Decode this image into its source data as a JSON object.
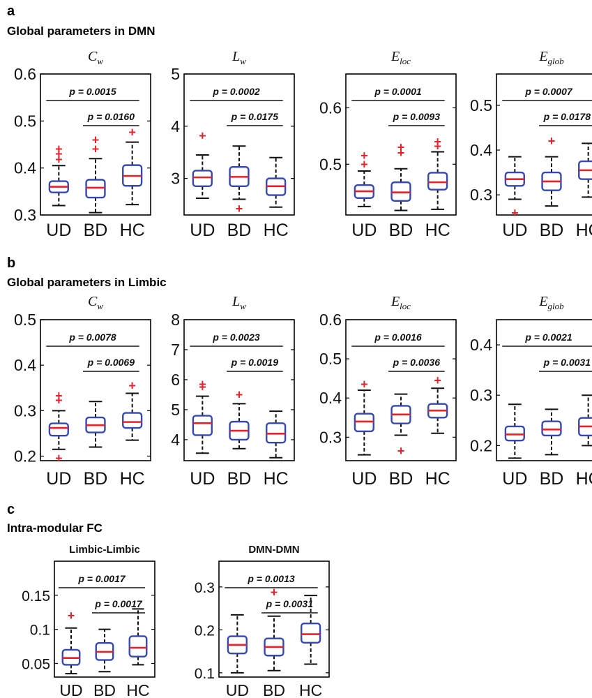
{
  "panels": [
    {
      "letter": "a",
      "title": "Global parameters in DMN"
    },
    {
      "letter": "b",
      "title": "Global parameters in Limbic"
    },
    {
      "letter": "c",
      "title": "Intra-modular FC"
    }
  ],
  "colors": {
    "box": "#3548b0",
    "median": "#e8202a",
    "outlier": "#e8202a",
    "whisker": "#111111"
  },
  "chart_data": [
    {
      "type": "box",
      "panel": "a",
      "title": "Cw",
      "title_main": "C",
      "title_sub": "w",
      "categories": [
        "UD",
        "BD",
        "HC"
      ],
      "ylim": [
        0.3,
        0.6
      ],
      "yticks": [
        "0.3",
        "0.4",
        "0.5",
        "0.6"
      ],
      "boxes": [
        {
          "low": 0.32,
          "q1": 0.348,
          "median": 0.36,
          "q3": 0.372,
          "high": 0.405,
          "outliers": [
            0.418,
            0.43,
            0.44
          ]
        },
        {
          "low": 0.305,
          "q1": 0.337,
          "median": 0.358,
          "q3": 0.375,
          "high": 0.42,
          "outliers": [
            0.44,
            0.46
          ]
        },
        {
          "low": 0.322,
          "q1": 0.362,
          "median": 0.383,
          "q3": 0.406,
          "high": 0.455,
          "outliers": [
            0.476
          ]
        }
      ],
      "pvalues": [
        {
          "text": "p = 0.0015",
          "from": 0,
          "to": 2
        },
        {
          "text": "p = 0.0160",
          "from": 1,
          "to": 2
        }
      ]
    },
    {
      "type": "box",
      "panel": "a",
      "title": "Lw",
      "title_main": "L",
      "title_sub": "w",
      "categories": [
        "UD",
        "BD",
        "HC"
      ],
      "ylim": [
        2.3,
        5.0
      ],
      "yticks": [
        "3",
        "4",
        "5"
      ],
      "boxes": [
        {
          "low": 2.62,
          "q1": 2.85,
          "median": 3.02,
          "q3": 3.15,
          "high": 3.45,
          "outliers": [
            3.82
          ]
        },
        {
          "low": 2.6,
          "q1": 2.85,
          "median": 3.03,
          "q3": 3.22,
          "high": 3.62,
          "outliers": [
            2.42
          ]
        },
        {
          "low": 2.45,
          "q1": 2.68,
          "median": 2.85,
          "q3": 3.0,
          "high": 3.4,
          "outliers": []
        }
      ],
      "pvalues": [
        {
          "text": "p = 0.0002",
          "from": 0,
          "to": 2
        },
        {
          "text": "p = 0.0175",
          "from": 1,
          "to": 2
        }
      ]
    },
    {
      "type": "box",
      "panel": "a",
      "title": "Eloc",
      "title_main": "E",
      "title_sub": "loc",
      "categories": [
        "UD",
        "BD",
        "HC"
      ],
      "ylim": [
        0.41,
        0.66
      ],
      "yticks": [
        "0.5",
        "0.6"
      ],
      "boxes": [
        {
          "low": 0.425,
          "q1": 0.44,
          "median": 0.452,
          "q3": 0.463,
          "high": 0.488,
          "outliers": [
            0.5,
            0.515
          ]
        },
        {
          "low": 0.418,
          "q1": 0.435,
          "median": 0.45,
          "q3": 0.468,
          "high": 0.492,
          "outliers": [
            0.52,
            0.53
          ]
        },
        {
          "low": 0.42,
          "q1": 0.455,
          "median": 0.468,
          "q3": 0.485,
          "high": 0.522,
          "outliers": [
            0.532,
            0.54
          ]
        }
      ],
      "pvalues": [
        {
          "text": "p = 0.0001",
          "from": 0,
          "to": 2
        },
        {
          "text": "p = 0.0093",
          "from": 1,
          "to": 2
        }
      ]
    },
    {
      "type": "box",
      "panel": "a",
      "title": "Eglob",
      "title_main": "E",
      "title_sub": "glob",
      "categories": [
        "UD",
        "BD",
        "HC"
      ],
      "ylim": [
        0.255,
        0.57
      ],
      "yticks": [
        "0.3",
        "0.4",
        "0.5"
      ],
      "boxes": [
        {
          "low": 0.29,
          "q1": 0.32,
          "median": 0.335,
          "q3": 0.35,
          "high": 0.385,
          "outliers": [
            0.26
          ]
        },
        {
          "low": 0.275,
          "q1": 0.31,
          "median": 0.33,
          "q3": 0.35,
          "high": 0.385,
          "outliers": [
            0.42
          ]
        },
        {
          "low": 0.295,
          "q1": 0.335,
          "median": 0.355,
          "q3": 0.375,
          "high": 0.415,
          "outliers": []
        }
      ],
      "pvalues": [
        {
          "text": "p = 0.0007",
          "from": 0,
          "to": 2
        },
        {
          "text": "p = 0.0178",
          "from": 1,
          "to": 2
        }
      ]
    },
    {
      "type": "box",
      "panel": "b",
      "title": "Cw",
      "title_main": "C",
      "title_sub": "w",
      "categories": [
        "UD",
        "BD",
        "HC"
      ],
      "ylim": [
        0.19,
        0.5
      ],
      "yticks": [
        "0.2",
        "0.3",
        "0.4",
        "0.5"
      ],
      "boxes": [
        {
          "low": 0.215,
          "q1": 0.245,
          "median": 0.262,
          "q3": 0.272,
          "high": 0.3,
          "outliers": [
            0.195,
            0.323,
            0.333
          ]
        },
        {
          "low": 0.22,
          "q1": 0.252,
          "median": 0.268,
          "q3": 0.285,
          "high": 0.32,
          "outliers": []
        },
        {
          "low": 0.235,
          "q1": 0.262,
          "median": 0.275,
          "q3": 0.295,
          "high": 0.338,
          "outliers": [
            0.355
          ]
        }
      ],
      "pvalues": [
        {
          "text": "p = 0.0078",
          "from": 0,
          "to": 2
        },
        {
          "text": "p = 0.0069",
          "from": 1,
          "to": 2
        }
      ]
    },
    {
      "type": "box",
      "panel": "b",
      "title": "Lw",
      "title_main": "L",
      "title_sub": "w",
      "categories": [
        "UD",
        "BD",
        "HC"
      ],
      "ylim": [
        3.3,
        8.0
      ],
      "yticks": [
        "4",
        "5",
        "6",
        "7",
        "8"
      ],
      "boxes": [
        {
          "low": 3.55,
          "q1": 4.15,
          "median": 4.55,
          "q3": 4.8,
          "high": 5.45,
          "outliers": [
            5.75,
            5.85
          ]
        },
        {
          "low": 3.7,
          "q1": 4.0,
          "median": 4.3,
          "q3": 4.6,
          "high": 5.2,
          "outliers": [
            5.5
          ]
        },
        {
          "low": 3.4,
          "q1": 3.9,
          "median": 4.2,
          "q3": 4.55,
          "high": 4.95,
          "outliers": []
        }
      ],
      "pvalues": [
        {
          "text": "p = 0.0023",
          "from": 0,
          "to": 2
        },
        {
          "text": "p = 0.0019",
          "from": 1,
          "to": 2
        }
      ]
    },
    {
      "type": "box",
      "panel": "b",
      "title": "Eloc",
      "title_main": "E",
      "title_sub": "loc",
      "categories": [
        "UD",
        "BD",
        "HC"
      ],
      "ylim": [
        0.24,
        0.6
      ],
      "yticks": [
        "0.3",
        "0.4",
        "0.5",
        "0.6"
      ],
      "boxes": [
        {
          "low": 0.255,
          "q1": 0.315,
          "median": 0.34,
          "q3": 0.36,
          "high": 0.42,
          "outliers": [
            0.435
          ]
        },
        {
          "low": 0.305,
          "q1": 0.335,
          "median": 0.358,
          "q3": 0.38,
          "high": 0.41,
          "outliers": [
            0.265
          ]
        },
        {
          "low": 0.31,
          "q1": 0.35,
          "median": 0.368,
          "q3": 0.385,
          "high": 0.425,
          "outliers": [
            0.445
          ]
        }
      ],
      "pvalues": [
        {
          "text": "p = 0.0016",
          "from": 0,
          "to": 2
        },
        {
          "text": "p = 0.0036",
          "from": 1,
          "to": 2
        }
      ]
    },
    {
      "type": "box",
      "panel": "b",
      "title": "Eglob",
      "title_main": "E",
      "title_sub": "glob",
      "categories": [
        "UD",
        "BD",
        "HC"
      ],
      "ylim": [
        0.17,
        0.45
      ],
      "yticks": [
        "0.2",
        "0.3",
        "0.4"
      ],
      "boxes": [
        {
          "low": 0.175,
          "q1": 0.21,
          "median": 0.222,
          "q3": 0.238,
          "high": 0.282,
          "outliers": []
        },
        {
          "low": 0.182,
          "q1": 0.22,
          "median": 0.232,
          "q3": 0.248,
          "high": 0.272,
          "outliers": []
        },
        {
          "low": 0.2,
          "q1": 0.22,
          "median": 0.238,
          "q3": 0.255,
          "high": 0.3,
          "outliers": []
        }
      ],
      "pvalues": [
        {
          "text": "p = 0.0021",
          "from": 0,
          "to": 2
        },
        {
          "text": "p = 0.0031",
          "from": 1,
          "to": 2
        }
      ]
    },
    {
      "type": "box",
      "panel": "c",
      "title": "Limbic-Limbic",
      "categories": [
        "UD",
        "BD",
        "HC"
      ],
      "ylim": [
        0.03,
        0.2
      ],
      "yticks": [
        "0.05",
        "0.1",
        "0.15"
      ],
      "boxes": [
        {
          "low": 0.035,
          "q1": 0.048,
          "median": 0.058,
          "q3": 0.07,
          "high": 0.102,
          "outliers": [
            0.12
          ]
        },
        {
          "low": 0.038,
          "q1": 0.055,
          "median": 0.067,
          "q3": 0.08,
          "high": 0.1,
          "outliers": []
        },
        {
          "low": 0.048,
          "q1": 0.06,
          "median": 0.073,
          "q3": 0.09,
          "high": 0.13,
          "outliers": []
        }
      ],
      "pvalues": [
        {
          "text": "p = 0.0017",
          "from": 0,
          "to": 2
        },
        {
          "text": "p = 0.0017",
          "from": 1,
          "to": 2
        }
      ]
    },
    {
      "type": "box",
      "panel": "c",
      "title": "DMN-DMN",
      "categories": [
        "UD",
        "BD",
        "HC"
      ],
      "ylim": [
        0.09,
        0.36
      ],
      "yticks": [
        "0.1",
        "0.2",
        "0.3"
      ],
      "boxes": [
        {
          "low": 0.1,
          "q1": 0.145,
          "median": 0.165,
          "q3": 0.185,
          "high": 0.235,
          "outliers": []
        },
        {
          "low": 0.105,
          "q1": 0.14,
          "median": 0.16,
          "q3": 0.18,
          "high": 0.232,
          "outliers": [
            0.288
          ]
        },
        {
          "low": 0.12,
          "q1": 0.17,
          "median": 0.19,
          "q3": 0.215,
          "high": 0.28,
          "outliers": []
        }
      ],
      "pvalues": [
        {
          "text": "p = 0.0013",
          "from": 0,
          "to": 2
        },
        {
          "text": "p = 0.0031",
          "from": 1,
          "to": 2
        }
      ]
    }
  ]
}
